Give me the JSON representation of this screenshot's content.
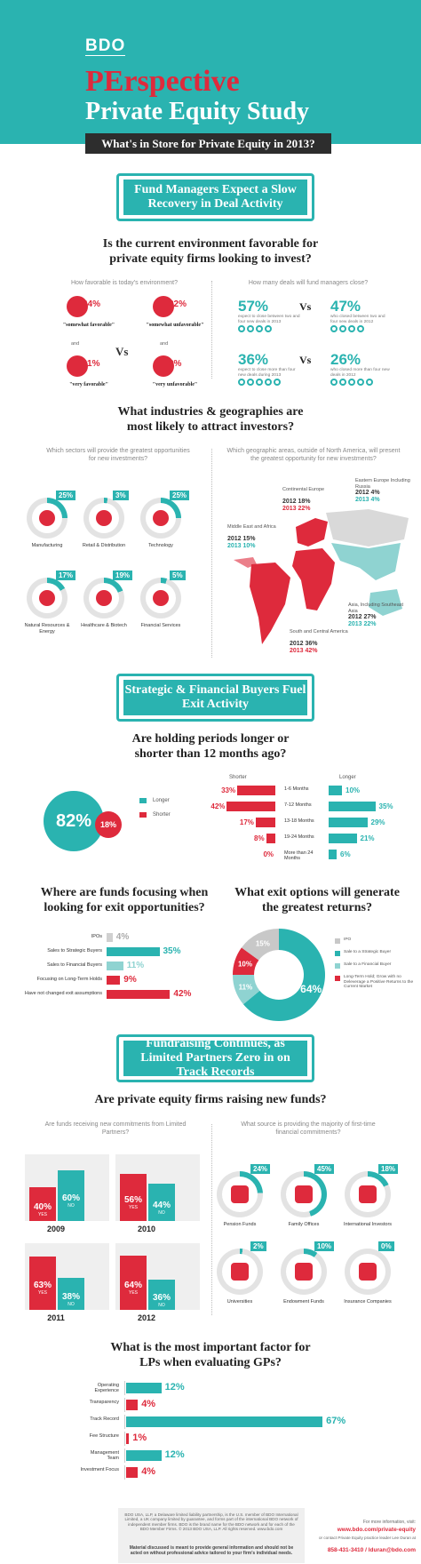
{
  "header": {
    "logo": "BDO",
    "title_red": "PErspective",
    "title_white": "Private Equity Study",
    "subtitle": "What's in Store for Private Equity in 2013?"
  },
  "colors": {
    "teal": "#2ab3b0",
    "red": "#de2a3c",
    "dark": "#2d2d2d",
    "grey": "#d0d0d0"
  },
  "section1": {
    "banner": "Fund Managers Expect a Slow Recovery in Deal Activity",
    "question": "Is the current environment favorable for private equity firms looking to invest?",
    "favorable": {
      "heading": "How favorable is today's environment?",
      "items": [
        {
          "pct": "64%",
          "label": "\"somewhat favorable\"",
          "icon": "thumbs-up-icon"
        },
        {
          "pct": "22%",
          "label": "\"somewhat unfavorable\"",
          "icon": "thumbs-down-icon"
        },
        {
          "pct": "11%",
          "label": "\"very favorable\"",
          "icon": "thumbs-up-icon"
        },
        {
          "pct": "3%",
          "label": "\"very unfavorable\"",
          "icon": "thumbs-down-icon"
        }
      ],
      "and": "and",
      "vs": "Vs"
    },
    "deals": {
      "heading": "How many deals will fund managers close?",
      "rows": [
        {
          "left_pct": "57%",
          "left_label": "expect to close between two and four new deals in 2013",
          "right_pct": "47%",
          "right_label": "who closed between two and four new deals in 2012"
        },
        {
          "left_pct": "36%",
          "left_label": "expect to close more than four new deals during 2013",
          "right_pct": "26%",
          "right_label": "who closed more than four new deals in 2012"
        }
      ],
      "vs": "Vs"
    }
  },
  "section2": {
    "question": "What industries & geographies are most likely to attract investors?",
    "sectors_heading": "Which sectors will provide the greatest opportunities for new investments?",
    "sectors": [
      {
        "pct": "25%",
        "label": "Manufacturing",
        "icon": "gear-icon",
        "value": 25
      },
      {
        "pct": "3%",
        "label": "Retail & Distribution",
        "icon": "basket-icon",
        "value": 3
      },
      {
        "pct": "25%",
        "label": "Technology",
        "icon": "monitor-icon",
        "value": 25
      },
      {
        "pct": "17%",
        "label": "Natural Resources & Energy",
        "icon": "recycle-icon",
        "value": 17
      },
      {
        "pct": "19%",
        "label": "Healthcare & Biotech",
        "icon": "medical-kit-icon",
        "value": 19
      },
      {
        "pct": "5%",
        "label": "Financial Services",
        "icon": "dollar-icon",
        "value": 5
      }
    ],
    "geo_heading": "Which geographic areas, outside of North America, will present the greatest opportunity for new investments?",
    "regions": [
      {
        "name": "Continental Europe",
        "y2012": "2012 18%",
        "y2013": "2013 22%"
      },
      {
        "name": "Eastern Europe Including Russia",
        "y2012": "2012 4%",
        "y2013": "2013 4%"
      },
      {
        "name": "Middle East and Africa",
        "y2012": "2012 15%",
        "y2013": "2013 10%"
      },
      {
        "name": "Asia, Including Southeast Asia",
        "y2012": "2012 27%",
        "y2013": "2013 22%"
      },
      {
        "name": "South and Central America",
        "y2012": "2012 36%",
        "y2013": "2013 42%"
      }
    ]
  },
  "section3": {
    "banner": "Strategic & Financial Buyers Fuel Exit Activity",
    "question": "Are holding periods longer or shorter than 12 months ago?",
    "longer_pct": "82%",
    "shorter_pct": "18%",
    "legend_longer": "Longer",
    "legend_shorter": "Shorter",
    "col_shorter": "Shorter",
    "col_longer": "Longer",
    "periods": [
      {
        "label": "1-6 Months",
        "shorter": "33%",
        "longer": "10%",
        "s": 33,
        "l": 10
      },
      {
        "label": "7-12 Months",
        "shorter": "42%",
        "longer": "35%",
        "s": 42,
        "l": 35
      },
      {
        "label": "13-18 Months",
        "shorter": "17%",
        "longer": "29%",
        "s": 17,
        "l": 29
      },
      {
        "label": "19-24 Months",
        "shorter": "8%",
        "longer": "21%",
        "s": 8,
        "l": 21
      },
      {
        "label": "More than 24 Months",
        "shorter": "0%",
        "longer": "6%",
        "s": 0,
        "l": 6
      }
    ],
    "focus_question": "Where are funds focusing when looking for exit opportunities?",
    "focus": [
      {
        "label": "IPOs",
        "pct": "4%",
        "v": 4,
        "color": "#d0d0d0"
      },
      {
        "label": "Sales to Strategic Buyers",
        "pct": "35%",
        "v": 35,
        "color": "#2ab3b0"
      },
      {
        "label": "Sales to Financial Buyers",
        "pct": "11%",
        "v": 11,
        "color": "#8fd3d1"
      },
      {
        "label": "Focusing on Long-Term Holds",
        "pct": "9%",
        "v": 9,
        "color": "#de2a3c"
      },
      {
        "label": "Have not changed exit assumptions",
        "pct": "42%",
        "v": 42,
        "color": "#de2a3c"
      }
    ],
    "returns_question": "What exit options will generate the greatest returns?",
    "returns": [
      {
        "label": "IPO",
        "pct": "15%",
        "v": 15,
        "color": "#c8c8c8"
      },
      {
        "label": "Sale to a Strategic Buyer",
        "pct": "64%",
        "v": 64,
        "color": "#2ab3b0"
      },
      {
        "label": "Sale to a Financial Buyer",
        "pct": "11%",
        "v": 11,
        "color": "#8fd3d1"
      },
      {
        "label": "Long-Term Hold; Grow with no Deleverage a Positive Returns to the Current Market",
        "pct": "10%",
        "v": 10,
        "color": "#de2a3c"
      }
    ]
  },
  "section4": {
    "banner": "Fundraising Continues, as Limited Partners Zero in on Track Records",
    "question": "Are private equity firms raising new funds?",
    "lp_heading": "Are funds receiving new commitments from Limited Partners?",
    "years": [
      {
        "year": "2009",
        "yes": "40%",
        "no": "60%",
        "y": 40,
        "n": 60
      },
      {
        "year": "2010",
        "yes": "56%",
        "no": "44%",
        "y": 56,
        "n": 44
      },
      {
        "year": "2011",
        "yes": "63%",
        "no": "38%",
        "y": 63,
        "n": 38
      },
      {
        "year": "2012",
        "yes": "64%",
        "no": "36%",
        "y": 64,
        "n": 36
      }
    ],
    "yes_label": "YES",
    "no_label": "NO",
    "source_heading": "What source is providing the majority of first-time financial commitments?",
    "sources": [
      {
        "pct": "24%",
        "label": "Pension Funds",
        "icon": "person-icon",
        "v": 24
      },
      {
        "pct": "45%",
        "label": "Family Offices",
        "icon": "family-icon",
        "v": 45
      },
      {
        "pct": "18%",
        "label": "International Investors",
        "icon": "map-icon",
        "v": 18
      },
      {
        "pct": "2%",
        "label": "Universities",
        "icon": "building-icon",
        "v": 2
      },
      {
        "pct": "10%",
        "label": "Endowment Funds",
        "icon": "money-bag-icon",
        "v": 10
      },
      {
        "pct": "0%",
        "label": "Insurance Companies",
        "icon": "house-icon",
        "v": 0
      }
    ],
    "gp_question": "What is the most important factor for LPs when evaluating GPs?",
    "factors": [
      {
        "label": "Operating Experience",
        "pct": "12%",
        "v": 12
      },
      {
        "label": "Transparency",
        "pct": "4%",
        "v": 4
      },
      {
        "label": "Track Record",
        "pct": "67%",
        "v": 67
      },
      {
        "label": "Fee Structure",
        "pct": "1%",
        "v": 1
      },
      {
        "label": "Management Team",
        "pct": "12%",
        "v": 12
      },
      {
        "label": "Investment Focus",
        "pct": "4%",
        "v": 4
      }
    ]
  },
  "footer": {
    "legal": "BDO USA, LLP, a Delaware limited liability partnership, is the U.S. member of BDO International Limited, a UK company limited by guarantee, and forms part of the international BDO network of independent member firms. BDO is the brand name for the BDO network and for each of the BDO Member Firms. © 2013 BDO USA, LLP. All rights reserved. www.bdo.com",
    "disclaimer": "Material discussed is meant to provide general information and should not be acted on without professional advice tailored to your firm's individual needs.",
    "more_info": "For more information, visit:",
    "url": "www.bdo.com/private-equity",
    "contact_label": "or contact Private Equity practice leader Lee Duran at",
    "contact": "858-431-3410 / lduran@bdo.com"
  }
}
